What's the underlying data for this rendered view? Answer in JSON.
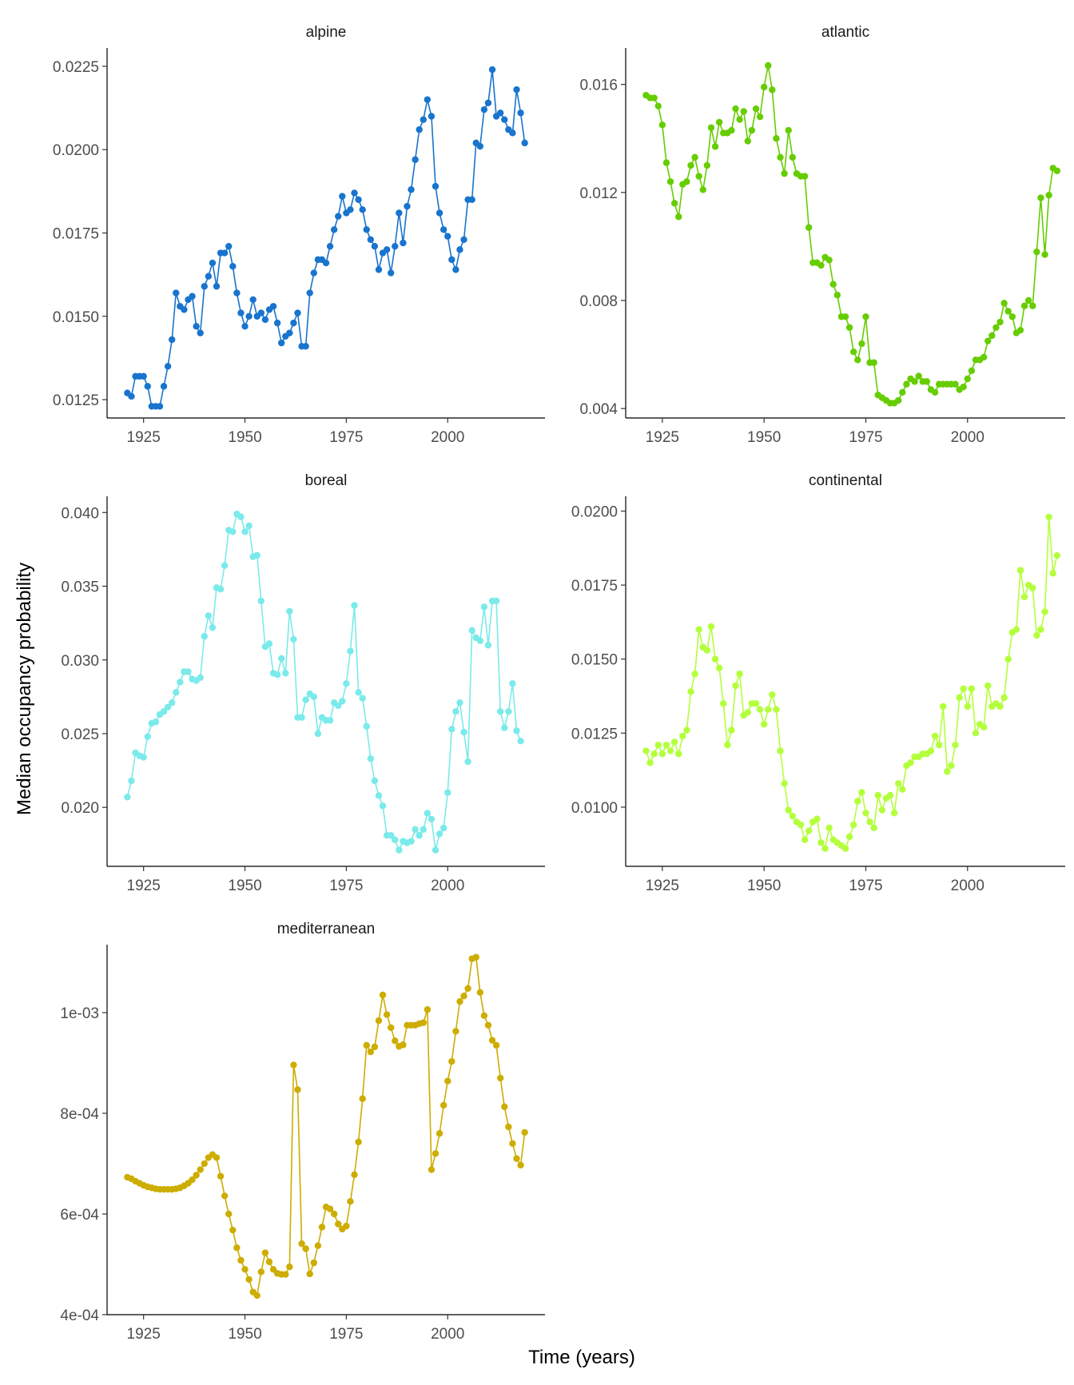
{
  "figure": {
    "ylabel": "Median occupancy probability",
    "xlabel": "Time (years)"
  },
  "chart_data": [
    {
      "type": "line",
      "title": "alpine",
      "color": "#1874CD",
      "xlim": [
        1916,
        2024
      ],
      "ylim": [
        0.01195,
        0.02305
      ],
      "xticks": [
        {
          "v": 1925,
          "label": "1925"
        },
        {
          "v": 1950,
          "label": "1950"
        },
        {
          "v": 1975,
          "label": "1975"
        },
        {
          "v": 2000,
          "label": "2000"
        }
      ],
      "yticks": [
        {
          "v": 0.0125,
          "label": "0.0125"
        },
        {
          "v": 0.015,
          "label": "0.0150"
        },
        {
          "v": 0.0175,
          "label": "0.0175"
        },
        {
          "v": 0.02,
          "label": "0.0200"
        },
        {
          "v": 0.0225,
          "label": "0.0225"
        }
      ],
      "x_start": 1921,
      "y": [
        0.0127,
        0.0126,
        0.0132,
        0.0132,
        0.0132,
        0.0129,
        0.0123,
        0.0123,
        0.0123,
        0.0129,
        0.0135,
        0.0143,
        0.0157,
        0.0153,
        0.0152,
        0.0155,
        0.0156,
        0.0147,
        0.0145,
        0.0159,
        0.0162,
        0.0166,
        0.0159,
        0.0169,
        0.0169,
        0.0171,
        0.0165,
        0.0157,
        0.0151,
        0.0147,
        0.015,
        0.0155,
        0.015,
        0.0151,
        0.0149,
        0.0152,
        0.0153,
        0.0148,
        0.0142,
        0.0144,
        0.0145,
        0.0148,
        0.0151,
        0.0141,
        0.0141,
        0.0157,
        0.0163,
        0.0167,
        0.0167,
        0.0166,
        0.0171,
        0.0176,
        0.018,
        0.0186,
        0.0181,
        0.0182,
        0.0187,
        0.0185,
        0.0182,
        0.0176,
        0.0173,
        0.0171,
        0.0164,
        0.0169,
        0.017,
        0.0163,
        0.0171,
        0.0181,
        0.0172,
        0.0183,
        0.0188,
        0.0197,
        0.0206,
        0.0209,
        0.0215,
        0.021,
        0.0189,
        0.0181,
        0.0176,
        0.0174,
        0.0167,
        0.0164,
        0.017,
        0.0173,
        0.0185,
        0.0185,
        0.0202,
        0.0201,
        0.0212,
        0.0214,
        0.0224,
        0.021,
        0.0211,
        0.0209,
        0.0206,
        0.0205,
        0.0218,
        0.0211,
        0.0202
      ]
    },
    {
      "type": "line",
      "title": "atlantic",
      "color": "#66CD00",
      "xlim": [
        1916,
        2024
      ],
      "ylim": [
        0.00365,
        0.01735
      ],
      "xticks": [
        {
          "v": 1925,
          "label": "1925"
        },
        {
          "v": 1950,
          "label": "1950"
        },
        {
          "v": 1975,
          "label": "1975"
        },
        {
          "v": 2000,
          "label": "2000"
        }
      ],
      "yticks": [
        {
          "v": 0.004,
          "label": "0.004"
        },
        {
          "v": 0.008,
          "label": "0.008"
        },
        {
          "v": 0.012,
          "label": "0.012"
        },
        {
          "v": 0.016,
          "label": "0.016"
        }
      ],
      "x_start": 1921,
      "y": [
        0.0156,
        0.0155,
        0.0155,
        0.0152,
        0.0145,
        0.0131,
        0.0124,
        0.0116,
        0.0111,
        0.0123,
        0.0124,
        0.013,
        0.0133,
        0.0126,
        0.0121,
        0.013,
        0.0144,
        0.0137,
        0.0146,
        0.0142,
        0.0142,
        0.0143,
        0.0151,
        0.0147,
        0.015,
        0.0139,
        0.0143,
        0.0151,
        0.0148,
        0.0159,
        0.0167,
        0.0158,
        0.014,
        0.0133,
        0.0127,
        0.0143,
        0.0133,
        0.0127,
        0.0126,
        0.0126,
        0.0107,
        0.0094,
        0.0094,
        0.0093,
        0.0096,
        0.0095,
        0.0086,
        0.0082,
        0.0074,
        0.0074,
        0.007,
        0.0061,
        0.0058,
        0.0064,
        0.0074,
        0.0057,
        0.0057,
        0.0045,
        0.0044,
        0.0043,
        0.0042,
        0.0042,
        0.0043,
        0.0046,
        0.0049,
        0.0051,
        0.005,
        0.0052,
        0.005,
        0.005,
        0.0047,
        0.0046,
        0.0049,
        0.0049,
        0.0049,
        0.0049,
        0.0049,
        0.0047,
        0.0048,
        0.0051,
        0.0054,
        0.0058,
        0.0058,
        0.0059,
        0.0065,
        0.0067,
        0.007,
        0.0072,
        0.0079,
        0.0076,
        0.0074,
        0.0068,
        0.0069,
        0.0078,
        0.008,
        0.0078,
        0.0098,
        0.0118,
        0.0097,
        0.0119,
        0.0129,
        0.0128
      ]
    },
    {
      "type": "line",
      "title": "boreal",
      "color": "#7AEAEA",
      "xlim": [
        1916,
        2024
      ],
      "ylim": [
        0.016,
        0.0411
      ],
      "xticks": [
        {
          "v": 1925,
          "label": "1925"
        },
        {
          "v": 1950,
          "label": "1950"
        },
        {
          "v": 1975,
          "label": "1975"
        },
        {
          "v": 2000,
          "label": "2000"
        }
      ],
      "yticks": [
        {
          "v": 0.02,
          "label": "0.020"
        },
        {
          "v": 0.025,
          "label": "0.025"
        },
        {
          "v": 0.03,
          "label": "0.030"
        },
        {
          "v": 0.035,
          "label": "0.035"
        },
        {
          "v": 0.04,
          "label": "0.040"
        }
      ],
      "x_start": 1921,
      "y": [
        0.0207,
        0.0218,
        0.0237,
        0.0235,
        0.0234,
        0.0248,
        0.0257,
        0.0258,
        0.0263,
        0.0265,
        0.0268,
        0.0271,
        0.0278,
        0.0285,
        0.0292,
        0.0292,
        0.0287,
        0.0286,
        0.0288,
        0.0316,
        0.033,
        0.0322,
        0.0349,
        0.0348,
        0.0364,
        0.0388,
        0.0387,
        0.0399,
        0.0397,
        0.0387,
        0.0391,
        0.037,
        0.0371,
        0.034,
        0.0309,
        0.0311,
        0.0291,
        0.029,
        0.0301,
        0.0291,
        0.0333,
        0.0314,
        0.0261,
        0.0261,
        0.0273,
        0.0277,
        0.0275,
        0.025,
        0.0261,
        0.0259,
        0.0259,
        0.0271,
        0.0269,
        0.0272,
        0.0284,
        0.0306,
        0.0337,
        0.0278,
        0.0274,
        0.0255,
        0.0233,
        0.0218,
        0.0208,
        0.0201,
        0.0181,
        0.0181,
        0.0178,
        0.0171,
        0.0177,
        0.0176,
        0.0177,
        0.0185,
        0.0181,
        0.0185,
        0.0196,
        0.0192,
        0.0171,
        0.0182,
        0.0186,
        0.021,
        0.0253,
        0.0265,
        0.0271,
        0.0251,
        0.0231,
        0.032,
        0.0315,
        0.0313,
        0.0336,
        0.031,
        0.034,
        0.034,
        0.0265,
        0.0254,
        0.0265,
        0.0284,
        0.0252,
        0.0245
      ]
    },
    {
      "type": "line",
      "title": "continental",
      "color": "#B3FF3B",
      "xlim": [
        1916,
        2024
      ],
      "ylim": [
        0.008,
        0.0205
      ],
      "xticks": [
        {
          "v": 1925,
          "label": "1925"
        },
        {
          "v": 1950,
          "label": "1950"
        },
        {
          "v": 1975,
          "label": "1975"
        },
        {
          "v": 2000,
          "label": "2000"
        }
      ],
      "yticks": [
        {
          "v": 0.01,
          "label": "0.0100"
        },
        {
          "v": 0.0125,
          "label": "0.0125"
        },
        {
          "v": 0.015,
          "label": "0.0150"
        },
        {
          "v": 0.0175,
          "label": "0.0175"
        },
        {
          "v": 0.02,
          "label": "0.0200"
        }
      ],
      "x_start": 1921,
      "y": [
        0.0119,
        0.0115,
        0.0118,
        0.0121,
        0.0118,
        0.0121,
        0.0119,
        0.0122,
        0.0118,
        0.0124,
        0.0126,
        0.0139,
        0.0145,
        0.016,
        0.0154,
        0.0153,
        0.0161,
        0.015,
        0.0147,
        0.0135,
        0.0121,
        0.0126,
        0.0141,
        0.0145,
        0.0131,
        0.0132,
        0.0135,
        0.0135,
        0.0133,
        0.0128,
        0.0133,
        0.0138,
        0.0133,
        0.0119,
        0.0108,
        0.0099,
        0.0097,
        0.0095,
        0.0094,
        0.0089,
        0.0092,
        0.0095,
        0.0096,
        0.0088,
        0.0086,
        0.0093,
        0.0089,
        0.0088,
        0.0087,
        0.0086,
        0.009,
        0.0094,
        0.0102,
        0.0105,
        0.0098,
        0.0095,
        0.0093,
        0.0104,
        0.0099,
        0.0103,
        0.0104,
        0.0098,
        0.0108,
        0.0106,
        0.0114,
        0.0115,
        0.0117,
        0.0117,
        0.0118,
        0.0118,
        0.0119,
        0.0124,
        0.0121,
        0.0134,
        0.0112,
        0.0114,
        0.0121,
        0.0137,
        0.014,
        0.0134,
        0.014,
        0.0125,
        0.0128,
        0.0127,
        0.0141,
        0.0134,
        0.0135,
        0.0134,
        0.0137,
        0.015,
        0.0159,
        0.016,
        0.018,
        0.0171,
        0.0175,
        0.0174,
        0.0158,
        0.016,
        0.0166,
        0.0198,
        0.0179,
        0.0185
      ]
    },
    {
      "type": "line",
      "title": "mediterranean",
      "color": "#CDAD00",
      "xlim": [
        1916,
        2024
      ],
      "ylim": [
        0.0004,
        0.001135
      ],
      "xticks": [
        {
          "v": 1925,
          "label": "1925"
        },
        {
          "v": 1950,
          "label": "1950"
        },
        {
          "v": 1975,
          "label": "1975"
        },
        {
          "v": 2000,
          "label": "2000"
        }
      ],
      "yticks": [
        {
          "v": 0.0004,
          "label": "4e-04"
        },
        {
          "v": 0.0006,
          "label": "6e-04"
        },
        {
          "v": 0.0008,
          "label": "8e-04"
        },
        {
          "v": 0.001,
          "label": "1e-03"
        }
      ],
      "x_start": 1921,
      "y": [
        0.000673,
        0.00067,
        0.000665,
        0.000661,
        0.000657,
        0.000654,
        0.000652,
        0.00065,
        0.000649,
        0.000649,
        0.000649,
        0.000649,
        0.00065,
        0.000652,
        0.000656,
        0.000661,
        0.000668,
        0.000677,
        0.000688,
        0.0007,
        0.000712,
        0.000718,
        0.000712,
        0.000675,
        0.000636,
        0.0006,
        0.000568,
        0.000533,
        0.000508,
        0.00049,
        0.00047,
        0.000445,
        0.000438,
        0.000485,
        0.000523,
        0.000505,
        0.00049,
        0.000482,
        0.00048,
        0.00048,
        0.000495,
        0.000896,
        0.000847,
        0.000541,
        0.000531,
        0.000481,
        0.000503,
        0.000537,
        0.000574,
        0.000614,
        0.00061,
        0.0006,
        0.00058,
        0.00057,
        0.000576,
        0.000625,
        0.000678,
        0.000743,
        0.000829,
        0.000935,
        0.000922,
        0.000932,
        0.000984,
        0.001035,
        0.000996,
        0.00097,
        0.000944,
        0.000933,
        0.000936,
        0.000975,
        0.000975,
        0.000975,
        0.000978,
        0.00098,
        0.001006,
        0.000688,
        0.00072,
        0.00076,
        0.000816,
        0.000864,
        0.000903,
        0.000963,
        0.001022,
        0.001033,
        0.001048,
        0.001107,
        0.00111,
        0.00104,
        0.000994,
        0.000975,
        0.000945,
        0.000935,
        0.00087,
        0.000813,
        0.000773,
        0.00074,
        0.00071,
        0.000697,
        0.000762
      ]
    }
  ]
}
